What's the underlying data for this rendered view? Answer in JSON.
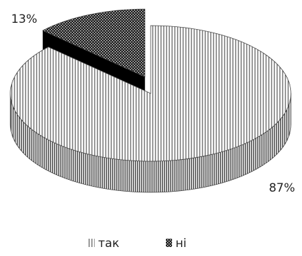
{
  "chart_data": {
    "type": "pie",
    "categories": [
      "так",
      "ні"
    ],
    "values": [
      87,
      13
    ],
    "value_labels": [
      "87%",
      "13%"
    ],
    "legend": "bottom"
  }
}
